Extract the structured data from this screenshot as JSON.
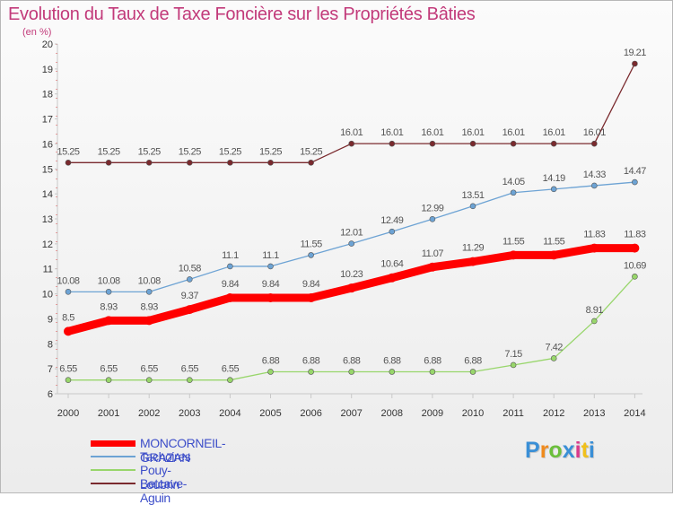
{
  "header": {
    "title": "Evolution du Taux de Taxe Foncière sur les Propriétés Bâties",
    "subtitle": "(en %)"
  },
  "chart_data": {
    "type": "line",
    "title": "Evolution du Taux de Taxe Foncière sur les Propriétés Bâties",
    "ylabel": "(en %)",
    "xlabel": "",
    "ylim": [
      6,
      20
    ],
    "grid": false,
    "legend_position": "bottom-left",
    "categories": [
      "2000",
      "2001",
      "2002",
      "2003",
      "2004",
      "2005",
      "2006",
      "2007",
      "2008",
      "2009",
      "2010",
      "2011",
      "2012",
      "2013",
      "2014"
    ],
    "y_ticks": [
      6,
      7,
      8,
      9,
      10,
      11,
      12,
      13,
      14,
      15,
      16,
      17,
      18,
      19,
      20
    ],
    "series": [
      {
        "name": "MONCORNEIL-GRAZAN",
        "color": "#ff0000",
        "emphasis": true,
        "values": [
          8.5,
          8.93,
          8.93,
          9.37,
          9.84,
          9.84,
          9.84,
          10.23,
          10.64,
          11.07,
          11.29,
          11.55,
          11.55,
          11.83,
          11.83
        ],
        "labels": [
          "8.5",
          "8.93",
          "8.93",
          "9.37",
          "9.84",
          "9.84",
          "9.84",
          "10.23",
          "10.64",
          "11.07",
          "11.29",
          "11.55",
          "11.55",
          "11.83",
          "11.83"
        ]
      },
      {
        "name": "Tachoires",
        "color": "#6da3d4",
        "values": [
          10.08,
          10.08,
          10.08,
          10.58,
          11.1,
          11.1,
          11.55,
          12.01,
          12.49,
          12.99,
          13.51,
          14.05,
          14.19,
          14.33,
          14.47
        ],
        "labels": [
          "10.08",
          "10.08",
          "10.08",
          "10.58",
          "11.1",
          "11.1",
          "11.55",
          "12.01",
          "12.49",
          "12.99",
          "13.51",
          "14.05",
          "14.19",
          "14.33",
          "14.47"
        ]
      },
      {
        "name": "Pouy-Loubrin",
        "color": "#98d66b",
        "values": [
          6.55,
          6.55,
          6.55,
          6.55,
          6.55,
          6.88,
          6.88,
          6.88,
          6.88,
          6.88,
          6.88,
          7.15,
          7.42,
          8.91,
          10.69
        ],
        "labels": [
          "6.55",
          "6.55",
          "6.55",
          "6.55",
          "6.55",
          "6.88",
          "6.88",
          "6.88",
          "6.88",
          "6.88",
          "6.88",
          "7.15",
          "7.42",
          "8.91",
          "10.69"
        ]
      },
      {
        "name": "Betcave-Aguin",
        "color": "#7a2a2e",
        "values": [
          15.25,
          15.25,
          15.25,
          15.25,
          15.25,
          15.25,
          15.25,
          16.01,
          16.01,
          16.01,
          16.01,
          16.01,
          16.01,
          16.01,
          19.21
        ],
        "labels": [
          "15.25",
          "15.25",
          "15.25",
          "15.25",
          "15.25",
          "15.25",
          "15.25",
          "16.01",
          "16.01",
          "16.01",
          "16.01",
          "16.01",
          "16.01",
          "16.01",
          "19.21"
        ]
      }
    ]
  },
  "legend": {
    "items": [
      {
        "label": "MONCORNEIL-GRAZAN",
        "color": "#ff0000"
      },
      {
        "label": "Tachoires",
        "color": "#6da3d4"
      },
      {
        "label": "Pouy-Loubrin",
        "color": "#98d66b"
      },
      {
        "label": "Betcave-Aguin",
        "color": "#7a2a2e"
      }
    ]
  },
  "brand": {
    "logo_text": "Proxiti",
    "logo_colors": [
      "#3a8fd6",
      "#f08a1c",
      "#6bbf3b",
      "#3a8fd6",
      "#d93a8c",
      "#f0c01c",
      "#3a8fd6"
    ]
  }
}
